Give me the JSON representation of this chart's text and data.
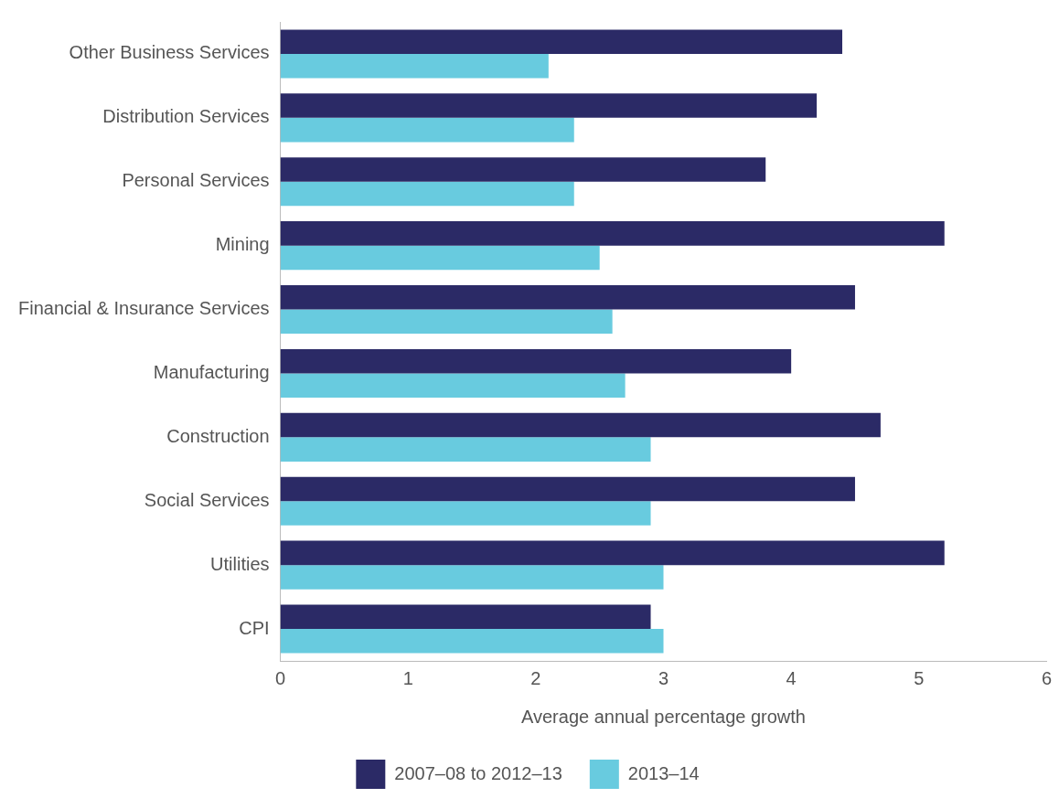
{
  "chart_data": {
    "type": "bar",
    "orientation": "horizontal",
    "xlabel": "Average annual percentage growth",
    "categories": [
      "Other Business Services",
      "Distribution Services",
      "Personal Services",
      "Mining",
      "Financial & Insurance Services",
      "Manufacturing",
      "Construction",
      "Social Services",
      "Utilities",
      "CPI"
    ],
    "series": [
      {
        "name": "2007–08 to 2012–13",
        "color": "#2b2a66",
        "values": [
          4.4,
          4.2,
          3.8,
          5.2,
          4.5,
          4.0,
          4.7,
          4.5,
          5.2,
          2.9
        ]
      },
      {
        "name": "2013–14",
        "color": "#68cbdf",
        "values": [
          2.1,
          2.3,
          2.3,
          2.5,
          2.6,
          2.7,
          2.9,
          2.9,
          3.0,
          3.0
        ]
      }
    ],
    "xlim": [
      0,
      6
    ],
    "xticks": [
      0,
      1,
      2,
      3,
      4,
      5,
      6
    ],
    "grid": false,
    "legend": "bottom"
  }
}
